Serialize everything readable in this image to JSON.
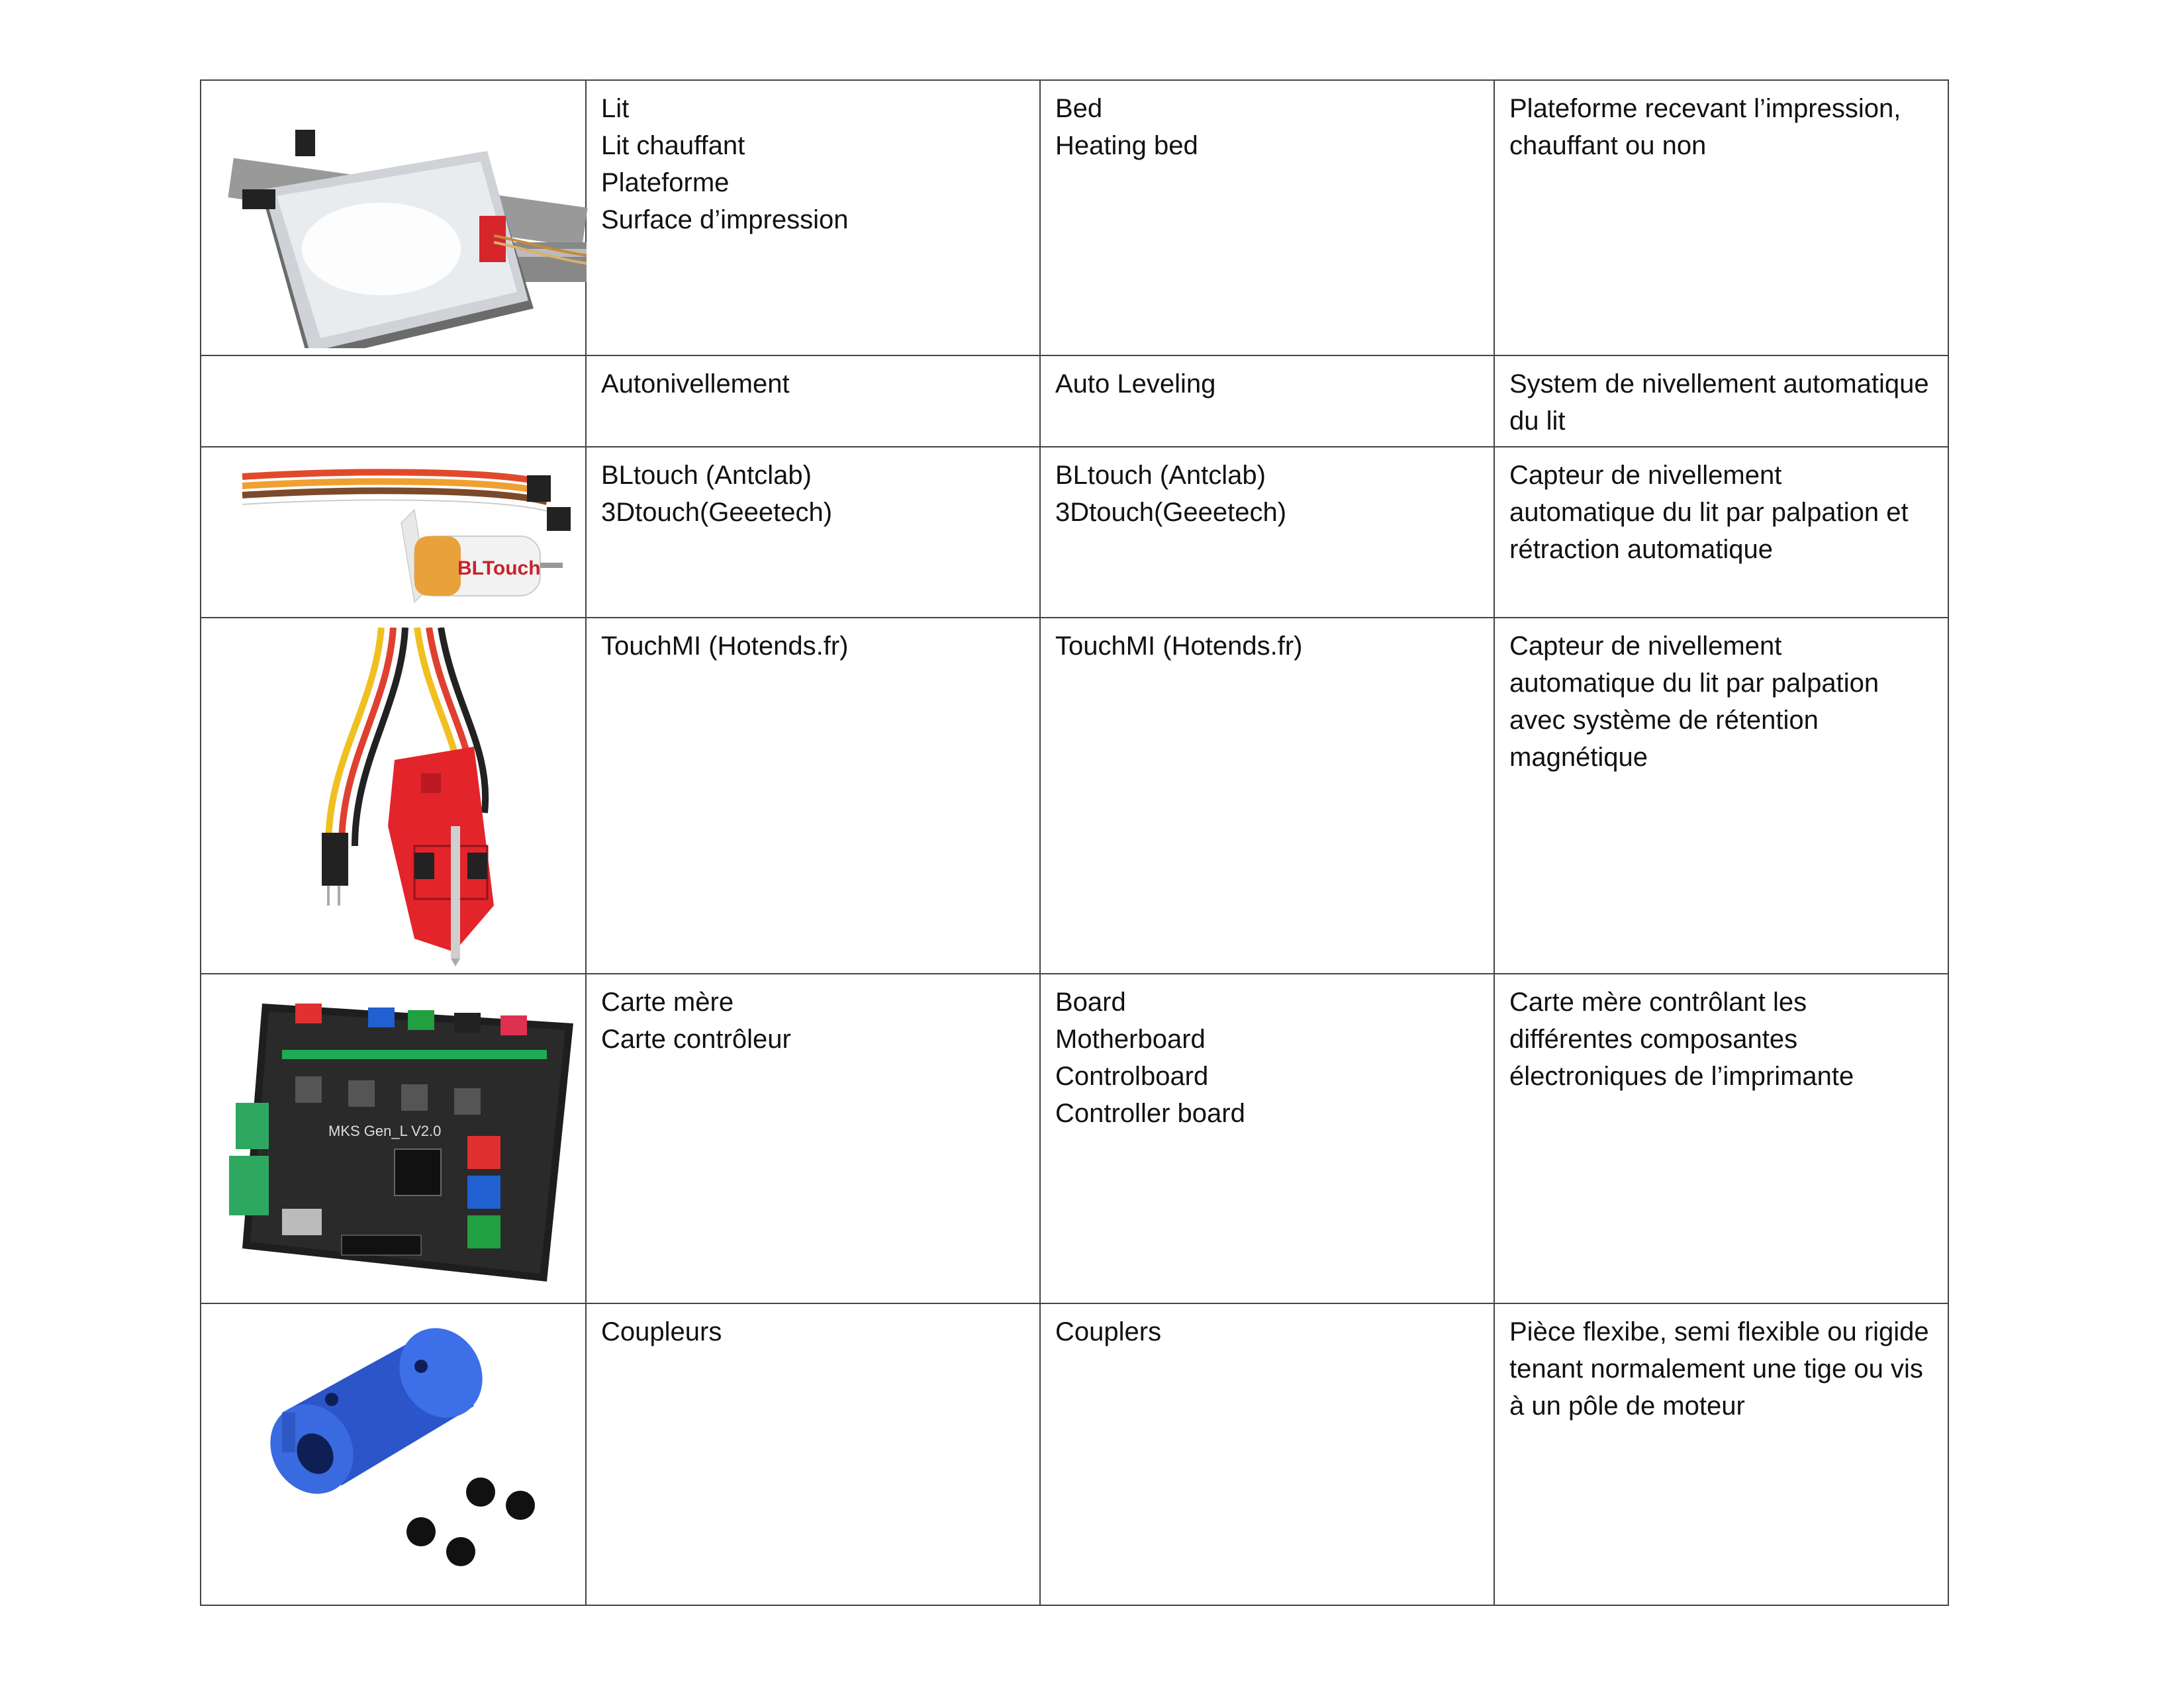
{
  "rows": [
    {
      "image_icon": "heated-bed-icon",
      "fr_lines": [
        "Lit",
        "Lit chauffant",
        "Plateforme",
        "Surface d’impression"
      ],
      "en_lines": [
        "Bed",
        "Heating bed"
      ],
      "description": "Plateforme recevant l’impression, chauffant ou non"
    },
    {
      "image_icon": "",
      "fr_lines": [
        "Autonivellement"
      ],
      "en_lines": [
        "Auto Leveling"
      ],
      "description": "System de nivellement automatique du lit"
    },
    {
      "image_icon": "bltouch-probe-icon",
      "probe_label": "BLTouch",
      "fr_lines": [
        "BLtouch (Antclab)",
        "3Dtouch(Geeetech)"
      ],
      "en_lines": [
        "BLtouch (Antclab)",
        "3Dtouch(Geeetech)"
      ],
      "description": "Capteur de nivellement automatique du lit par palpation et rétraction automatique"
    },
    {
      "image_icon": "touchmi-probe-icon",
      "fr_lines": [
        "TouchMI (Hotends.fr)"
      ],
      "en_lines": [
        "TouchMI (Hotends.fr)"
      ],
      "description": "Capteur de nivellement automatique du lit par palpation avec système de rétention magnétique"
    },
    {
      "image_icon": "motherboard-icon",
      "board_label": "MKS Gen_L V2.0",
      "fr_lines": [
        "Carte mère",
        "Carte contrôleur"
      ],
      "en_lines": [
        "Board",
        "Motherboard",
        "Controlboard",
        "Controller board"
      ],
      "description": "Carte mère contrôlant les différentes composantes électroniques de l’imprimante"
    },
    {
      "image_icon": "shaft-coupler-icon",
      "fr_lines": [
        "Coupleurs"
      ],
      "en_lines": [
        "Couplers"
      ],
      "description": "Pièce flexibe, semi flexible ou rigide tenant normalement une tige ou vis à un pôle de moteur"
    }
  ],
  "colors": {
    "border": "#444444",
    "coupler_blue": "#2b55c9",
    "probe_red": "#e3242b",
    "board_black": "#1e1e1e"
  }
}
